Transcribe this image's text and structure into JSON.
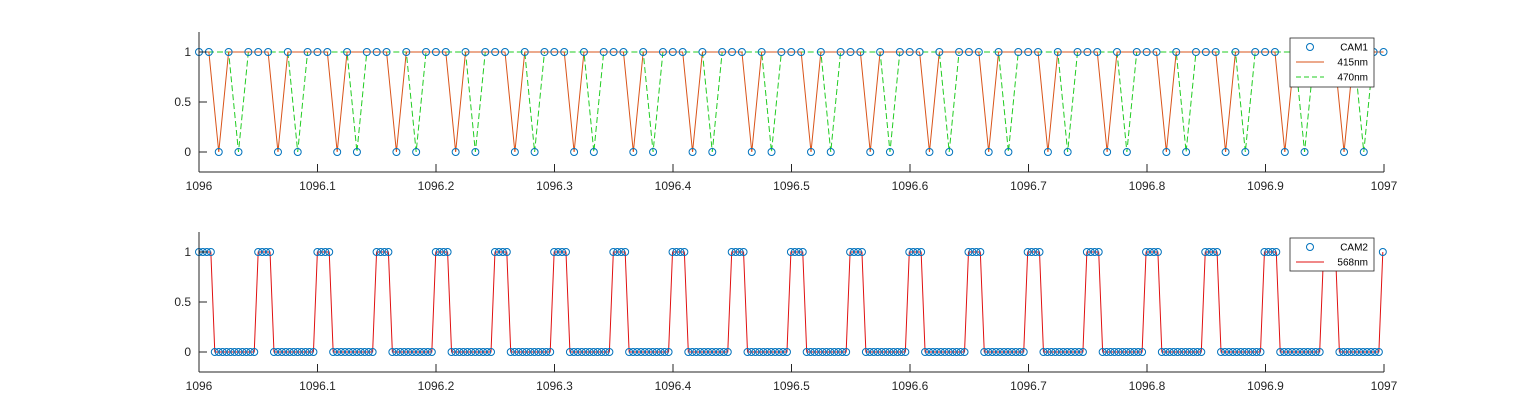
{
  "chart_data": [
    {
      "type": "line",
      "xlim": [
        1096,
        1097
      ],
      "ylim": [
        -0.2,
        1.2
      ],
      "xticks": [
        "1096",
        "1096.1",
        "1096.2",
        "1096.3",
        "1096.4",
        "1096.5",
        "1096.6",
        "1096.7",
        "1096.8",
        "1096.9",
        "1097"
      ],
      "yticks": [
        "0",
        "0.5",
        "1"
      ],
      "legend_position": "top-right",
      "grid": false,
      "sample_spacing": 0.00833,
      "series": [
        {
          "name": "CAM1",
          "style": "markers",
          "color": "#0072BD",
          "description": "binary samples: 1 except single 0-samples at the 415nm and 470nm on-times"
        },
        {
          "name": "415nm",
          "style": "solid",
          "color": "#D95319",
          "pulse_period": 0.05,
          "first_pulse": 1096.0125,
          "pulse_value": 0,
          "baseline": 1
        },
        {
          "name": "470nm",
          "style": "dashed",
          "color": "#22CC22",
          "pulse_period": 0.05,
          "first_pulse": 1096.0292,
          "pulse_value": 0,
          "baseline": 1
        }
      ]
    },
    {
      "type": "line",
      "xlim": [
        1096,
        1097
      ],
      "ylim": [
        -0.2,
        1.2
      ],
      "xticks": [
        "1096",
        "1096.1",
        "1096.2",
        "1096.3",
        "1096.4",
        "1096.5",
        "1096.6",
        "1096.7",
        "1096.8",
        "1096.9",
        "1097"
      ],
      "yticks": [
        "0",
        "0.5",
        "1"
      ],
      "legend_position": "top-right",
      "grid": false,
      "sample_spacing": 0.00333,
      "series": [
        {
          "name": "CAM2",
          "style": "markers",
          "color": "#0072BD",
          "description": "binary samples following the 568nm square wave"
        },
        {
          "name": "568nm",
          "style": "solid",
          "color": "#E01010",
          "period": 0.05,
          "high_start_offset": 0.0483,
          "high_width": 0.0133,
          "high_value": 1,
          "low_value": 0
        }
      ]
    }
  ]
}
